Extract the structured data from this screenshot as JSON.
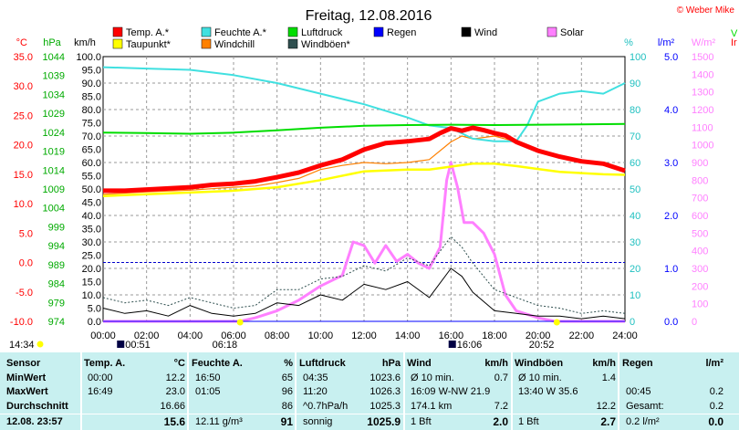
{
  "title": "Freitag, 12.08.2016",
  "copyright": "© Weber Mike",
  "unit_labels": {
    "temp": "°C",
    "pressure": "hPa",
    "wind": "km/h",
    "humidity": "%",
    "rain": "l/m²",
    "solar": "W/m²"
  },
  "legend": [
    {
      "label": "Temp. A.*",
      "color": "#ff0000"
    },
    {
      "label": "Feuchte A.*",
      "color": "#40e0e0"
    },
    {
      "label": "Luftdruck",
      "color": "#00dd00"
    },
    {
      "label": "Regen",
      "color": "#0000ff"
    },
    {
      "label": "Wind",
      "color": "#000000"
    },
    {
      "label": "Solar",
      "color": "#ff80ff"
    },
    {
      "label": "Taupunkt*",
      "color": "#ffff00"
    },
    {
      "label": "Windchill",
      "color": "#ff8000"
    },
    {
      "label": "Windböen*",
      "color": "#2f4f4f"
    }
  ],
  "right_edge_labels": [
    "V",
    "Ir"
  ],
  "time_markers": {
    "start_time": "14:34",
    "sunrise": "06:18",
    "sunset": "20:52",
    "moonrise": "00:51",
    "moonset": "16:06"
  },
  "chart_data": {
    "type": "line",
    "x_unit": "hours",
    "xlim": [
      0,
      24
    ],
    "x_ticks": [
      "00:00",
      "02:00",
      "04:00",
      "06:00",
      "08:00",
      "10:00",
      "12:00",
      "14:00",
      "16:00",
      "18:00",
      "20:00",
      "22:00",
      "24:00"
    ],
    "axes": {
      "temp": {
        "label": "°C",
        "lim": [
          -10,
          35
        ],
        "ticks": [
          "-10.0",
          "-5.0",
          "0.0",
          "5.0",
          "10.0",
          "15.0",
          "20.0",
          "25.0",
          "30.0",
          "35.0"
        ],
        "color": "#ff0000"
      },
      "pressure": {
        "label": "hPa",
        "lim": [
          974,
          1044
        ],
        "ticks": [
          "974",
          "979",
          "984",
          "989",
          "994",
          "999",
          "1004",
          "1009",
          "1014",
          "1019",
          "1024",
          "1029",
          "1034",
          "1039",
          "1044"
        ],
        "color": "#00dd00"
      },
      "wind": {
        "label": "km/h",
        "lim": [
          0,
          100
        ],
        "ticks": [
          "0.0",
          "5.0",
          "10.0",
          "15.0",
          "20.0",
          "25.0",
          "30.0",
          "35.0",
          "40.0",
          "45.0",
          "50.0",
          "55.0",
          "60.0",
          "65.0",
          "70.0",
          "75.0",
          "80.0",
          "85.0",
          "90.0",
          "95.0",
          "100.0"
        ],
        "color": "#000000"
      },
      "humidity": {
        "label": "%",
        "lim": [
          0,
          100
        ],
        "ticks": [
          "0",
          "10",
          "20",
          "30",
          "40",
          "50",
          "60",
          "70",
          "80",
          "90",
          "100"
        ],
        "color": "#40e0e0"
      },
      "rain": {
        "label": "l/m²",
        "lim": [
          0,
          5
        ],
        "ticks": [
          "0.0",
          "1.0",
          "2.0",
          "3.0",
          "4.0",
          "5.0"
        ],
        "color": "#0000ff"
      },
      "solar": {
        "label": "W/m²",
        "lim": [
          0,
          1500
        ],
        "ticks": [
          "0",
          "100",
          "200",
          "300",
          "400",
          "500",
          "600",
          "700",
          "800",
          "900",
          "1000",
          "1100",
          "1200",
          "1300",
          "1400",
          "1500"
        ],
        "color": "#ff80ff"
      }
    },
    "zero_line_temp": 0,
    "series": [
      {
        "name": "Temp. A.*",
        "axis": "temp",
        "color": "#ff0000",
        "x": [
          0,
          1,
          2,
          3,
          4,
          5,
          6,
          7,
          8,
          9,
          10,
          11,
          12,
          13,
          14,
          15,
          15.5,
          16,
          16.5,
          17,
          17.5,
          18,
          18.5,
          19,
          20,
          21,
          22,
          23,
          24
        ],
        "y": [
          12.2,
          12.2,
          12.4,
          12.6,
          12.8,
          13.2,
          13.4,
          13.8,
          14.5,
          15.3,
          16.5,
          17.5,
          19.2,
          20.3,
          20.6,
          21.0,
          22.0,
          22.8,
          22.4,
          22.9,
          22.5,
          22.0,
          21.6,
          20.5,
          19.0,
          18.0,
          17.2,
          16.8,
          15.6
        ]
      },
      {
        "name": "Taupunkt*",
        "axis": "temp",
        "color": "#ffff00",
        "x": [
          0,
          2,
          4,
          6,
          8,
          10,
          12,
          14,
          15,
          16,
          17,
          18,
          19,
          20,
          21,
          22,
          23,
          24
        ],
        "y": [
          11.3,
          11.6,
          11.9,
          12.2,
          12.8,
          14.0,
          15.5,
          15.8,
          15.8,
          16.3,
          16.8,
          16.8,
          16.4,
          15.9,
          15.4,
          15.2,
          15.0,
          14.9
        ]
      },
      {
        "name": "Windchill",
        "axis": "temp",
        "color": "#ff8000",
        "x": [
          0,
          2,
          4,
          6,
          7,
          8,
          9,
          10,
          11,
          12,
          13,
          14,
          15,
          16,
          16.5,
          17,
          18,
          18.5,
          19,
          20,
          21,
          22,
          23,
          24
        ],
        "y": [
          11.6,
          12.0,
          12.3,
          12.8,
          13.0,
          13.6,
          14.3,
          15.8,
          16.5,
          17.0,
          16.8,
          17.0,
          17.5,
          20.5,
          21.5,
          21.0,
          21.5,
          21.0,
          20.5,
          19.0,
          18.0,
          17.2,
          16.8,
          15.6
        ]
      },
      {
        "name": "Feuchte A.*",
        "axis": "humidity",
        "color": "#40e0e0",
        "x": [
          0,
          2,
          4,
          6,
          8,
          10,
          12,
          14,
          15,
          16,
          17,
          18,
          19,
          19.5,
          20,
          21,
          22,
          23,
          24
        ],
        "y": [
          96,
          95.5,
          95,
          93,
          90,
          86,
          82,
          77,
          74,
          73,
          69,
          68,
          68,
          74,
          83,
          86,
          87,
          86,
          90
        ]
      },
      {
        "name": "Luftdruck",
        "axis": "pressure",
        "color": "#00dd00",
        "x": [
          0,
          2,
          4,
          6,
          8,
          10,
          12,
          14,
          16,
          18,
          20,
          22,
          24
        ],
        "y": [
          1023.9,
          1023.8,
          1023.6,
          1023.9,
          1024.5,
          1025.2,
          1025.7,
          1025.9,
          1026.0,
          1025.9,
          1026.0,
          1026.1,
          1026.2
        ]
      },
      {
        "name": "Solar",
        "axis": "solar",
        "color": "#ff80ff",
        "x": [
          0,
          6.3,
          7,
          8,
          9,
          10,
          11,
          11.5,
          12,
          12.5,
          13,
          13.5,
          14,
          14.5,
          15,
          15.5,
          15.8,
          16,
          16.3,
          16.6,
          17,
          17.5,
          18,
          18.5,
          19,
          20,
          20.8,
          24
        ],
        "y": [
          0,
          0,
          20,
          60,
          120,
          200,
          260,
          450,
          430,
          330,
          430,
          340,
          380,
          330,
          300,
          420,
          800,
          900,
          760,
          560,
          560,
          500,
          380,
          150,
          60,
          20,
          0,
          0
        ]
      },
      {
        "name": "Wind",
        "axis": "wind",
        "color": "#000000",
        "x": [
          0,
          1,
          2,
          3,
          4,
          5,
          6,
          7,
          8,
          9,
          10,
          11,
          12,
          13,
          14,
          15,
          16,
          16.5,
          17,
          18,
          19,
          20,
          21,
          22,
          23,
          24
        ],
        "y": [
          5,
          3,
          4,
          2,
          6,
          3,
          2,
          3,
          7,
          6,
          10,
          8,
          14,
          12,
          15,
          9,
          20,
          17,
          11,
          4,
          3,
          2,
          2,
          1,
          2,
          1
        ]
      },
      {
        "name": "Windböen*",
        "axis": "wind",
        "color": "#2f4f4f",
        "x": [
          0,
          1,
          2,
          3,
          4,
          5,
          6,
          7,
          8,
          9,
          10,
          11,
          12,
          13,
          14,
          15,
          16,
          16.5,
          17,
          18,
          19,
          20,
          21,
          22,
          23,
          24
        ],
        "y": [
          9,
          7,
          8,
          6,
          9,
          7,
          5,
          6,
          12,
          12,
          16,
          17,
          21,
          19,
          24,
          21,
          32,
          28,
          22,
          12,
          9,
          6,
          5,
          3,
          4,
          3
        ]
      },
      {
        "name": "Regen",
        "axis": "rain",
        "color": "#0000ff",
        "x": [
          0,
          24
        ],
        "y": [
          0,
          0
        ]
      }
    ]
  },
  "table": {
    "row_labels": [
      "Sensor",
      "MinWert",
      "MaxWert",
      "Durchschnitt",
      "12.08. 23:57"
    ],
    "columns": [
      {
        "header": "Temp. A.",
        "unit": "°C",
        "rows": [
          [
            "00:00",
            "12.2"
          ],
          [
            "16:49",
            "23.0"
          ],
          [
            "",
            "16.66"
          ],
          [
            "",
            "15.6"
          ]
        ]
      },
      {
        "header": "Feuchte A.",
        "unit": "%",
        "rows": [
          [
            "16:50",
            "65"
          ],
          [
            "01:05",
            "96"
          ],
          [
            "",
            "86"
          ],
          [
            "12.11 g/m³",
            "91"
          ]
        ]
      },
      {
        "header": "Luftdruck",
        "unit": "hPa",
        "rows": [
          [
            "04:35",
            "1023.6"
          ],
          [
            "11:20",
            "1026.3"
          ],
          [
            "^0.7hPa/h",
            "1025.3"
          ],
          [
            "sonnig",
            "1025.9"
          ]
        ]
      },
      {
        "header": "Wind",
        "unit": "km/h",
        "rows": [
          [
            "Ø 10 min.",
            "0.7"
          ],
          [
            "16:09  W-NW 21.9",
            ""
          ],
          [
            "174.1 km",
            "7.2"
          ],
          [
            "1 Bft",
            "2.0"
          ]
        ]
      },
      {
        "header": "Windböen",
        "unit": "km/h",
        "rows": [
          [
            "Ø 10 min.",
            "1.4"
          ],
          [
            "13:40      W 35.6",
            ""
          ],
          [
            "",
            "12.2"
          ],
          [
            "1 Bft",
            "2.7"
          ]
        ]
      },
      {
        "header": "Regen",
        "unit": "l/m²",
        "rows": [
          [
            "",
            ""
          ],
          [
            "00:45",
            "0.2"
          ],
          [
            "Gesamt:",
            "0.2"
          ],
          [
            "0.2 l/m²",
            "0.0"
          ]
        ]
      }
    ]
  }
}
